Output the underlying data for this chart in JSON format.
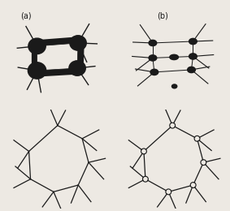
{
  "bg_color": "#ede9e3",
  "label_a": "(a)",
  "label_b": "(b)",
  "line_color": "#1a1a1a",
  "fill_color": "#1a1a1a",
  "line_width": 0.9
}
